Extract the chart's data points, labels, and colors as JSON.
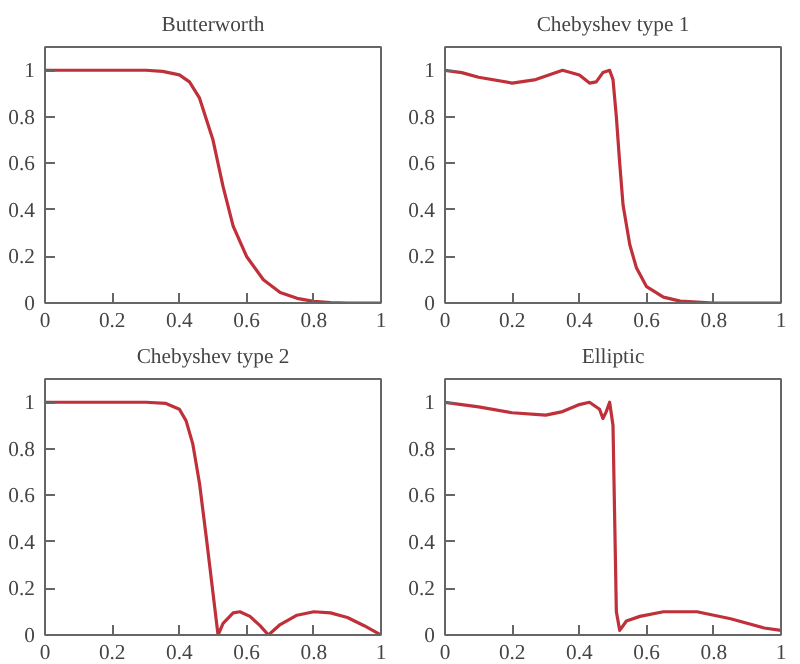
{
  "chart_data": [
    {
      "type": "line",
      "title": "Butterworth",
      "xlim": [
        0,
        1
      ],
      "ylim": [
        0,
        1.1
      ],
      "xticks": [
        0,
        0.2,
        0.4,
        0.6,
        0.8,
        1
      ],
      "yticks": [
        0,
        0.2,
        0.4,
        0.6,
        0.8,
        1
      ],
      "series": [
        {
          "color": "#c0303a",
          "x": [
            0,
            0.1,
            0.2,
            0.3,
            0.35,
            0.4,
            0.43,
            0.46,
            0.5,
            0.53,
            0.56,
            0.6,
            0.65,
            0.7,
            0.75,
            0.8,
            0.85,
            0.9,
            1
          ],
          "values": [
            1,
            1,
            1,
            1,
            0.995,
            0.98,
            0.95,
            0.88,
            0.7,
            0.5,
            0.33,
            0.2,
            0.1,
            0.045,
            0.02,
            0.007,
            0.002,
            0,
            0
          ]
        }
      ]
    },
    {
      "type": "line",
      "title": "Chebyshev type 1",
      "xlim": [
        0,
        1
      ],
      "ylim": [
        0,
        1.1
      ],
      "xticks": [
        0,
        0.2,
        0.4,
        0.6,
        0.8,
        1
      ],
      "yticks": [
        0,
        0.2,
        0.4,
        0.6,
        0.8,
        1
      ],
      "series": [
        {
          "color": "#c0303a",
          "x": [
            0,
            0.05,
            0.1,
            0.2,
            0.27,
            0.35,
            0.4,
            0.43,
            0.45,
            0.47,
            0.49,
            0.5,
            0.51,
            0.52,
            0.53,
            0.55,
            0.57,
            0.6,
            0.65,
            0.7,
            0.8,
            1
          ],
          "values": [
            1,
            0.99,
            0.97,
            0.945,
            0.96,
            1,
            0.98,
            0.945,
            0.95,
            0.99,
            1,
            0.96,
            0.8,
            0.6,
            0.42,
            0.25,
            0.15,
            0.07,
            0.025,
            0.008,
            0,
            0
          ]
        }
      ]
    },
    {
      "type": "line",
      "title": "Chebyshev type 2",
      "xlim": [
        0,
        1
      ],
      "ylim": [
        0,
        1.1
      ],
      "xticks": [
        0,
        0.2,
        0.4,
        0.6,
        0.8,
        1
      ],
      "yticks": [
        0,
        0.2,
        0.4,
        0.6,
        0.8,
        1
      ],
      "series": [
        {
          "color": "#c0303a",
          "x": [
            0,
            0.2,
            0.3,
            0.36,
            0.4,
            0.42,
            0.44,
            0.46,
            0.48,
            0.5,
            0.515,
            0.53,
            0.56,
            0.58,
            0.61,
            0.64,
            0.665,
            0.7,
            0.75,
            0.8,
            0.85,
            0.9,
            0.95,
            1
          ],
          "values": [
            1,
            1,
            1,
            0.995,
            0.97,
            0.92,
            0.82,
            0.65,
            0.42,
            0.18,
            0,
            0.05,
            0.095,
            0.1,
            0.08,
            0.04,
            0,
            0.045,
            0.085,
            0.1,
            0.095,
            0.075,
            0.04,
            0
          ]
        }
      ]
    },
    {
      "type": "line",
      "title": "Elliptic",
      "xlim": [
        0,
        1
      ],
      "ylim": [
        0,
        1.1
      ],
      "xticks": [
        0,
        0.2,
        0.4,
        0.6,
        0.8,
        1
      ],
      "yticks": [
        0,
        0.2,
        0.4,
        0.6,
        0.8,
        1
      ],
      "series": [
        {
          "color": "#c0303a",
          "x": [
            0,
            0.1,
            0.2,
            0.3,
            0.35,
            0.4,
            0.43,
            0.46,
            0.47,
            0.48,
            0.49,
            0.5,
            0.505,
            0.51,
            0.52,
            0.54,
            0.58,
            0.65,
            0.75,
            0.85,
            0.95,
            1
          ],
          "values": [
            1,
            0.98,
            0.955,
            0.945,
            0.96,
            0.99,
            1,
            0.97,
            0.93,
            0.96,
            1,
            0.9,
            0.5,
            0.1,
            0.02,
            0.06,
            0.08,
            0.1,
            0.1,
            0.07,
            0.03,
            0.02
          ]
        }
      ]
    }
  ]
}
